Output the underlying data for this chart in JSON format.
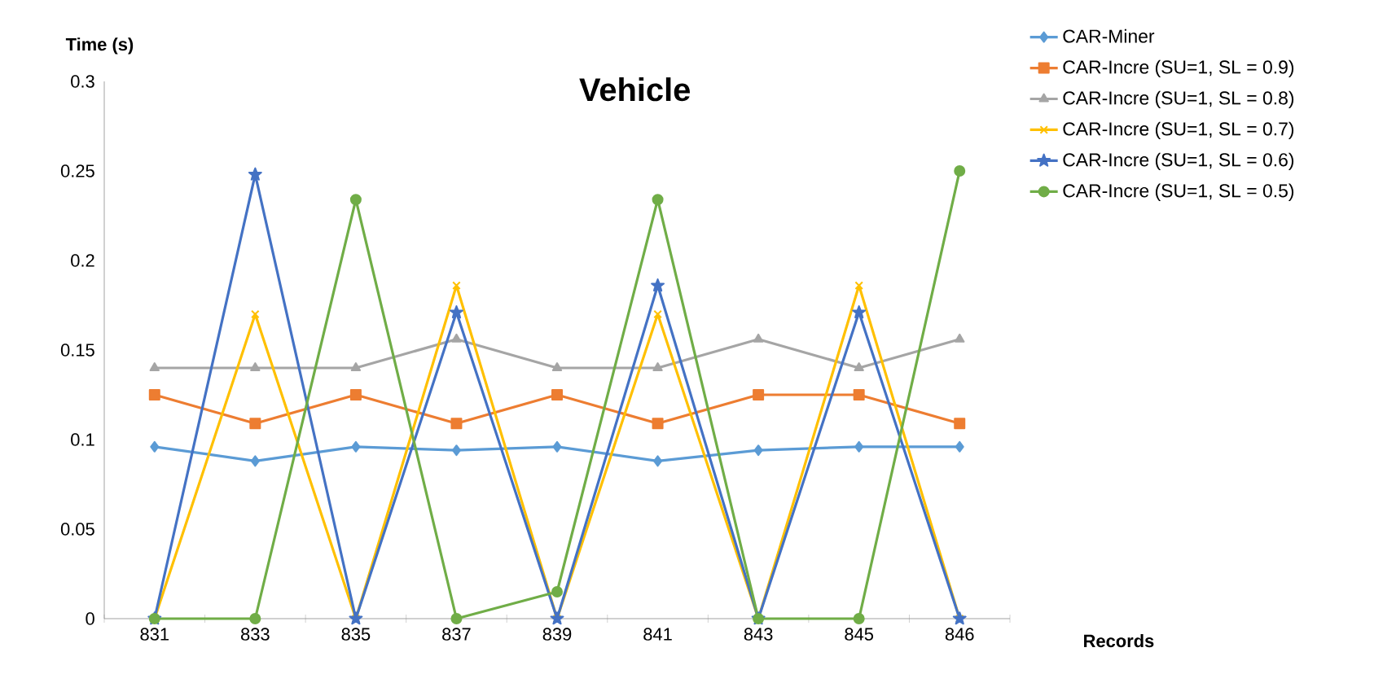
{
  "chart_data": {
    "type": "line",
    "title": "Vehicle",
    "xlabel": "Records",
    "ylabel": "Time (s)",
    "categories": [
      "831",
      "833",
      "835",
      "837",
      "839",
      "841",
      "843",
      "845",
      "846"
    ],
    "ylim": [
      0,
      0.3
    ],
    "yticks": [
      0,
      0.05,
      0.1,
      0.15,
      0.2,
      0.25,
      0.3
    ],
    "grid": false,
    "legend": "right",
    "series": [
      {
        "name": "CAR-Miner",
        "color": "#5b9bd5",
        "marker": "diamond",
        "values": [
          0.096,
          0.088,
          0.096,
          0.094,
          0.096,
          0.088,
          0.094,
          0.096,
          0.096
        ]
      },
      {
        "name": "CAR-Incre (SU=1, SL = 0.9)",
        "color": "#ed7d31",
        "marker": "square",
        "values": [
          0.125,
          0.109,
          0.125,
          0.109,
          0.125,
          0.109,
          0.125,
          0.125,
          0.109
        ]
      },
      {
        "name": "CAR-Incre (SU=1, SL = 0.8)",
        "color": "#a5a5a5",
        "marker": "triangle",
        "values": [
          0.14,
          0.14,
          0.14,
          0.156,
          0.14,
          0.14,
          0.156,
          0.14,
          0.156
        ]
      },
      {
        "name": "CAR-Incre (SU=1, SL = 0.7)",
        "color": "#ffc000",
        "marker": "cross",
        "values": [
          0,
          0.17,
          0,
          0.186,
          0,
          0.17,
          0,
          0.186,
          0
        ]
      },
      {
        "name": "CAR-Incre (SU=1, SL = 0.6)",
        "color": "#4472c4",
        "marker": "star",
        "values": [
          0,
          0.248,
          0,
          0.171,
          0,
          0.186,
          0,
          0.171,
          0
        ]
      },
      {
        "name": "CAR-Incre (SU=1, SL = 0.5)",
        "color": "#70ad47",
        "marker": "circle",
        "values": [
          0,
          0,
          0.234,
          0,
          0.015,
          0.234,
          0,
          0,
          0.25
        ]
      }
    ]
  }
}
